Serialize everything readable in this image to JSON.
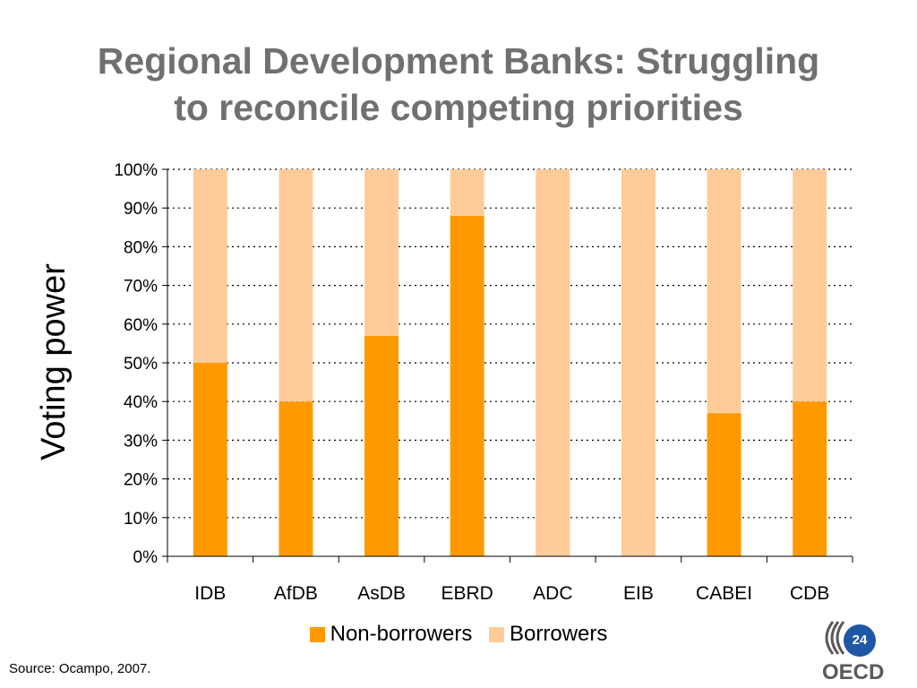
{
  "slide": {
    "title_line1": "Regional Development Banks: Struggling",
    "title_line2": "to reconcile competing priorities",
    "source": "Source: Ocampo, 2007.",
    "page_number": "24",
    "logo_text": "OECD"
  },
  "colors": {
    "non_borrowers": "#ff9900",
    "borrowers": "#ffcc99",
    "gridline": "#000000",
    "title": "#707070",
    "page_badge": "#1f57a5"
  },
  "chart_data": {
    "type": "bar",
    "stacked": true,
    "title": "",
    "xlabel": "",
    "ylabel": "Voting power",
    "ylim": [
      0,
      100
    ],
    "yticks": [
      0,
      10,
      20,
      30,
      40,
      50,
      60,
      70,
      80,
      90,
      100
    ],
    "ytick_labels": [
      "0%",
      "10%",
      "20%",
      "30%",
      "40%",
      "50%",
      "60%",
      "70%",
      "80%",
      "90%",
      "100%"
    ],
    "categories": [
      "IDB",
      "AfDB",
      "AsDB",
      "EBRD",
      "ADC",
      "EIB",
      "CABEI",
      "CDB"
    ],
    "series": [
      {
        "name": "Non-borrowers",
        "values": [
          50,
          40,
          57,
          88,
          0,
          0,
          37,
          40
        ]
      },
      {
        "name": "Borrowers",
        "values": [
          50,
          60,
          43,
          12,
          100,
          100,
          63,
          60
        ]
      }
    ],
    "grid": true,
    "legend_position": "bottom"
  }
}
